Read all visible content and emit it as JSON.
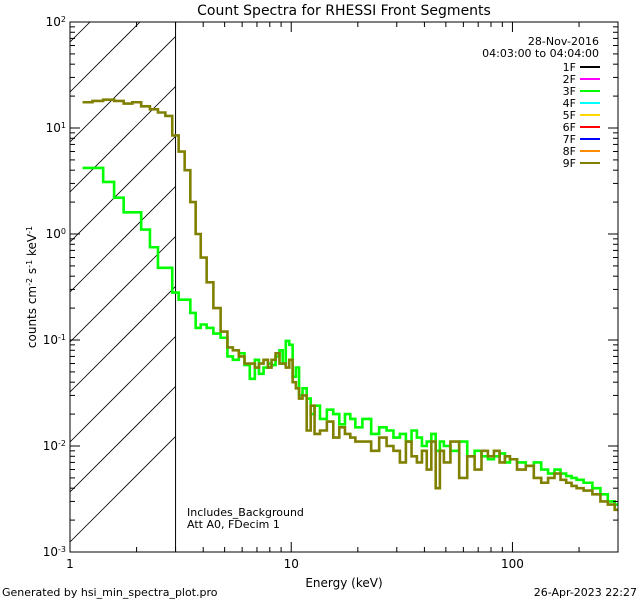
{
  "chart_data": {
    "type": "line",
    "title": "Count Spectra for RHESSI Front Segments",
    "xlabel": "Energy (keV)",
    "ylabel_parts": {
      "a": "counts cm",
      "b": "-2",
      "c": " s",
      "d": "-1",
      "e": " keV",
      "f": "-1"
    },
    "xscale": "log",
    "yscale": "log",
    "xlim": [
      1,
      300
    ],
    "ylim": [
      0.001,
      100
    ],
    "x_ticks": [
      {
        "value": 1,
        "label": "1"
      },
      {
        "value": 10,
        "label": "10"
      },
      {
        "value": 100,
        "label": "100"
      }
    ],
    "y_ticks": [
      {
        "value": 0.001,
        "base": "10",
        "exp": "-3"
      },
      {
        "value": 0.01,
        "base": "10",
        "exp": "-2"
      },
      {
        "value": 0.1,
        "base": "10",
        "exp": "-1"
      },
      {
        "value": 1,
        "base": "10",
        "exp": "0"
      },
      {
        "value": 10,
        "base": "10",
        "exp": "1"
      },
      {
        "value": 100,
        "base": "10",
        "exp": "2"
      }
    ],
    "shaded_region_kev": [
      1,
      3
    ],
    "header_lines": [
      "28-Nov-2016",
      "04:03:00 to 04:04:00"
    ],
    "legend": [
      {
        "name": "1F",
        "color": "#000000"
      },
      {
        "name": "2F",
        "color": "#ff00ff"
      },
      {
        "name": "3F",
        "color": "#00ff00"
      },
      {
        "name": "4F",
        "color": "#00ffff"
      },
      {
        "name": "5F",
        "color": "#ffd700"
      },
      {
        "name": "6F",
        "color": "#ff0000"
      },
      {
        "name": "7F",
        "color": "#0000ff"
      },
      {
        "name": "8F",
        "color": "#ff8c00"
      },
      {
        "name": "9F",
        "color": "#808000"
      }
    ],
    "annotations": [
      "Includes_Background",
      "Att A0, FDecim 1"
    ],
    "series": [
      {
        "name": "3F",
        "color": "#00ff00",
        "x": [
          1.2,
          1.33,
          1.5,
          1.67,
          1.83,
          2.0,
          2.2,
          2.4,
          2.6,
          2.8,
          3.0,
          3.2,
          3.4,
          3.6,
          3.8,
          4.0,
          4.3,
          4.6,
          5.0,
          5.3,
          5.6,
          6.0,
          6.3,
          6.7,
          7.0,
          7.3,
          7.7,
          8.0,
          8.3,
          8.7,
          9.0,
          9.3,
          9.6,
          10.0,
          10.3,
          10.7,
          11.0,
          11.5,
          12.0,
          12.5,
          13.0,
          14.0,
          15.0,
          16.0,
          17.0,
          18.0,
          19.0,
          20.0,
          22.0,
          24.0,
          26.0,
          28.0,
          30.0,
          32.0,
          34.0,
          36.0,
          38.0,
          40.0,
          42.0,
          44.0,
          46.0,
          48.0,
          50.0,
          55.0,
          60.0,
          65.0,
          70.0,
          75.0,
          80.0,
          85.0,
          90.0,
          95.0,
          100.0,
          110.0,
          120.0,
          130.0,
          140.0,
          150.0,
          160.0,
          170.0,
          180.0,
          190.0,
          200.0,
          220.0,
          240.0,
          260.0,
          280.0,
          300.0
        ],
        "values": [
          4.2,
          4.2,
          3.1,
          2.2,
          1.6,
          1.6,
          1.1,
          0.75,
          0.48,
          0.48,
          0.28,
          0.24,
          0.24,
          0.18,
          0.13,
          0.14,
          0.13,
          0.115,
          0.105,
          0.07,
          0.065,
          0.075,
          0.058,
          0.043,
          0.065,
          0.048,
          0.055,
          0.06,
          0.058,
          0.07,
          0.08,
          0.06,
          0.098,
          0.09,
          0.045,
          0.055,
          0.03,
          0.035,
          0.028,
          0.02,
          0.024,
          0.018,
          0.022,
          0.02,
          0.016,
          0.02,
          0.018,
          0.015,
          0.018,
          0.013,
          0.015,
          0.014,
          0.012,
          0.013,
          0.011,
          0.014,
          0.012,
          0.01,
          0.011,
          0.013,
          0.009,
          0.011,
          0.01,
          0.009,
          0.011,
          0.008,
          0.009,
          0.008,
          0.0075,
          0.008,
          0.0085,
          0.007,
          0.0075,
          0.007,
          0.0065,
          0.007,
          0.006,
          0.0055,
          0.006,
          0.0055,
          0.0052,
          0.005,
          0.0048,
          0.0045,
          0.004,
          0.0035,
          0.003,
          0.0028
        ]
      },
      {
        "name": "9F",
        "color": "#808000",
        "x": [
          1.2,
          1.33,
          1.5,
          1.67,
          1.83,
          2.0,
          2.2,
          2.4,
          2.6,
          2.8,
          3.0,
          3.2,
          3.4,
          3.6,
          3.8,
          4.0,
          4.3,
          4.6,
          5.0,
          5.3,
          5.6,
          6.0,
          6.3,
          6.7,
          7.0,
          7.3,
          7.7,
          8.0,
          8.3,
          8.7,
          9.0,
          9.3,
          9.6,
          10.0,
          10.3,
          10.7,
          11.0,
          11.5,
          12.0,
          12.5,
          13.0,
          14.0,
          15.0,
          16.0,
          17.0,
          18.0,
          19.0,
          20.0,
          22.0,
          24.0,
          26.0,
          28.0,
          30.0,
          32.0,
          34.0,
          36.0,
          38.0,
          40.0,
          42.0,
          44.0,
          46.0,
          48.0,
          50.0,
          55.0,
          60.0,
          65.0,
          70.0,
          75.0,
          80.0,
          85.0,
          90.0,
          95.0,
          100.0,
          110.0,
          120.0,
          130.0,
          140.0,
          150.0,
          160.0,
          170.0,
          180.0,
          190.0,
          200.0,
          220.0,
          240.0,
          260.0,
          280.0,
          300.0
        ],
        "values": [
          17.5,
          18.0,
          18.5,
          18.0,
          17.0,
          17.5,
          16.0,
          15.0,
          14.0,
          13.0,
          8.5,
          6.0,
          4.0,
          2.0,
          1.0,
          0.6,
          0.35,
          0.2,
          0.12,
          0.085,
          0.08,
          0.07,
          0.06,
          0.06,
          0.055,
          0.06,
          0.065,
          0.055,
          0.065,
          0.075,
          0.06,
          0.06,
          0.055,
          0.065,
          0.04,
          0.035,
          0.028,
          0.03,
          0.014,
          0.024,
          0.013,
          0.014,
          0.017,
          0.012,
          0.015,
          0.013,
          0.012,
          0.011,
          0.011,
          0.009,
          0.012,
          0.01,
          0.009,
          0.007,
          0.011,
          0.008,
          0.007,
          0.009,
          0.006,
          0.011,
          0.004,
          0.009,
          0.007,
          0.011,
          0.005,
          0.008,
          0.006,
          0.009,
          0.008,
          0.009,
          0.007,
          0.008,
          0.0075,
          0.006,
          0.0065,
          0.005,
          0.0045,
          0.005,
          0.0055,
          0.0048,
          0.0045,
          0.0042,
          0.004,
          0.0038,
          0.0035,
          0.003,
          0.0028,
          0.0025
        ]
      }
    ]
  },
  "footer": {
    "left": "Generated by hsi_min_spectra_plot.pro",
    "right": "26-Apr-2023 22:27"
  }
}
